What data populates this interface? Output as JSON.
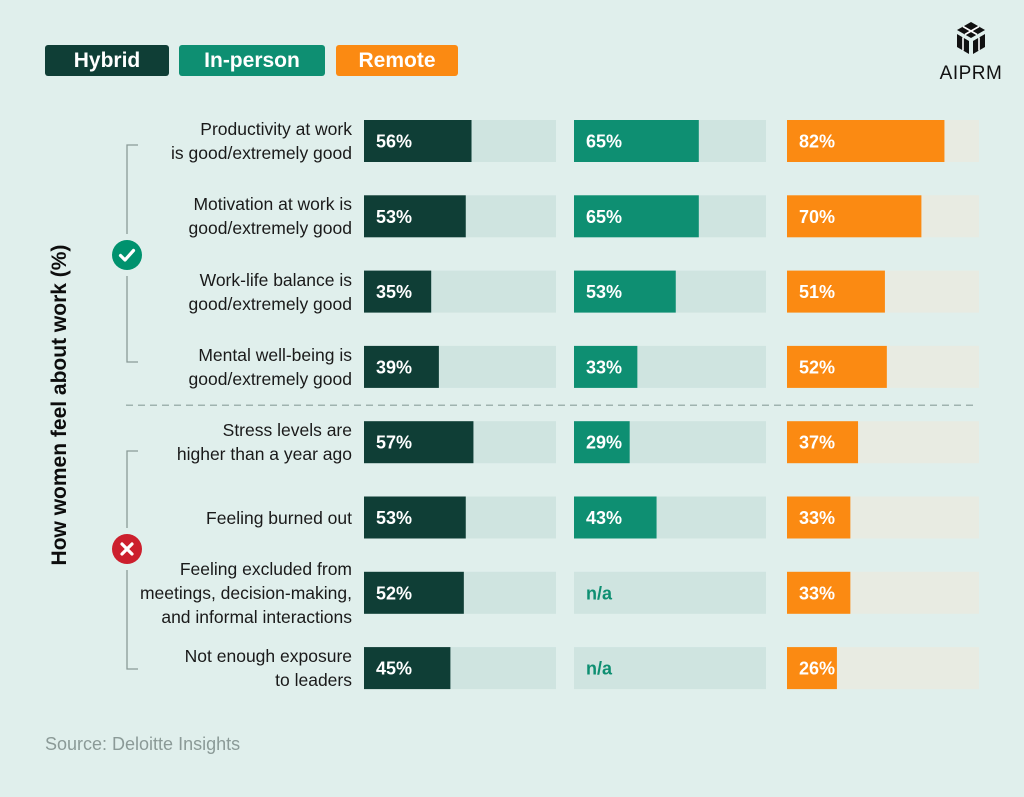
{
  "legend": [
    {
      "label": "Hybrid",
      "color": "#0f3e36"
    },
    {
      "label": "In-person",
      "color": "#0e8f72"
    },
    {
      "label": "Remote",
      "color": "#fb8a12"
    }
  ],
  "brand": {
    "name": "AIPRM",
    "icon": "aiprm-logo-icon"
  },
  "source": "Source: Deloitte Insights",
  "colors": {
    "background": "#e0efec",
    "track_hybrid": "#cfe4e0",
    "track_inperson": "#cfe4e0",
    "track_remote": "#e8ebe2",
    "bracket": "#8a9a97",
    "divider": "#9fb3af",
    "na_text": "#0e8f72",
    "positive_icon": "#00926e",
    "negative_icon": "#cc1f2d"
  },
  "icons": {
    "positive": "check-circle-icon",
    "negative": "x-circle-icon"
  },
  "chart_data": {
    "type": "bar",
    "orientation": "horizontal",
    "ylabel": "How women feel about work (%)",
    "xlim": [
      0,
      100
    ],
    "categories": [
      [
        "Productivity at work",
        "is good/extremely good"
      ],
      [
        "Motivation at work is",
        "good/extremely good"
      ],
      [
        "Work-life balance is",
        "good/extremely good"
      ],
      [
        "Mental well-being is",
        "good/extremely good"
      ],
      [
        "Stress levels are",
        "higher than a year ago"
      ],
      [
        "Feeling burned out"
      ],
      [
        "Feeling excluded from",
        "meetings, decision-making,",
        "and informal interactions"
      ],
      [
        "Not enough exposure",
        "to leaders"
      ]
    ],
    "groups": [
      {
        "name": "positive",
        "categories": [
          0,
          1,
          2,
          3
        ]
      },
      {
        "name": "negative",
        "categories": [
          4,
          5,
          6,
          7
        ]
      }
    ],
    "series": [
      {
        "name": "Hybrid",
        "values": [
          56,
          53,
          35,
          39,
          57,
          53,
          52,
          45
        ],
        "labels": [
          "56%",
          "53%",
          "35%",
          "39%",
          "57%",
          "53%",
          "52%",
          "45%"
        ]
      },
      {
        "name": "In-person",
        "values": [
          65,
          65,
          53,
          33,
          29,
          43,
          null,
          null
        ],
        "labels": [
          "65%",
          "65%",
          "53%",
          "33%",
          "29%",
          "43%",
          "n/a",
          "n/a"
        ]
      },
      {
        "name": "Remote",
        "values": [
          82,
          70,
          51,
          52,
          37,
          33,
          33,
          26
        ],
        "labels": [
          "82%",
          "70%",
          "51%",
          "52%",
          "37%",
          "33%",
          "33%",
          "26%"
        ]
      }
    ]
  }
}
